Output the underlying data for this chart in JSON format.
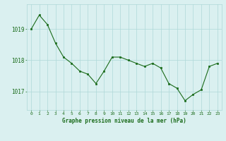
{
  "hours": [
    0,
    1,
    2,
    3,
    4,
    5,
    6,
    7,
    8,
    9,
    10,
    11,
    12,
    13,
    14,
    15,
    16,
    17,
    18,
    19,
    20,
    21,
    22,
    23
  ],
  "values": [
    1019.0,
    1019.45,
    1019.15,
    1018.55,
    1018.1,
    1017.9,
    1017.65,
    1017.55,
    1017.25,
    1017.65,
    1018.1,
    1018.1,
    1018.0,
    1017.9,
    1017.8,
    1017.9,
    1017.75,
    1017.25,
    1017.1,
    1016.7,
    1016.9,
    1017.05,
    1017.8,
    1017.9
  ],
  "line_color": "#1a6b1a",
  "marker_color": "#1a6b1a",
  "bg_color": "#daf0f0",
  "grid_color": "#aed8d8",
  "xlabel": "Graphe pression niveau de la mer (hPa)",
  "xlabel_color": "#1a6b1a",
  "tick_color": "#1a6b1a",
  "ylim": [
    1016.4,
    1019.8
  ],
  "yticks": [
    1017,
    1018,
    1019
  ]
}
